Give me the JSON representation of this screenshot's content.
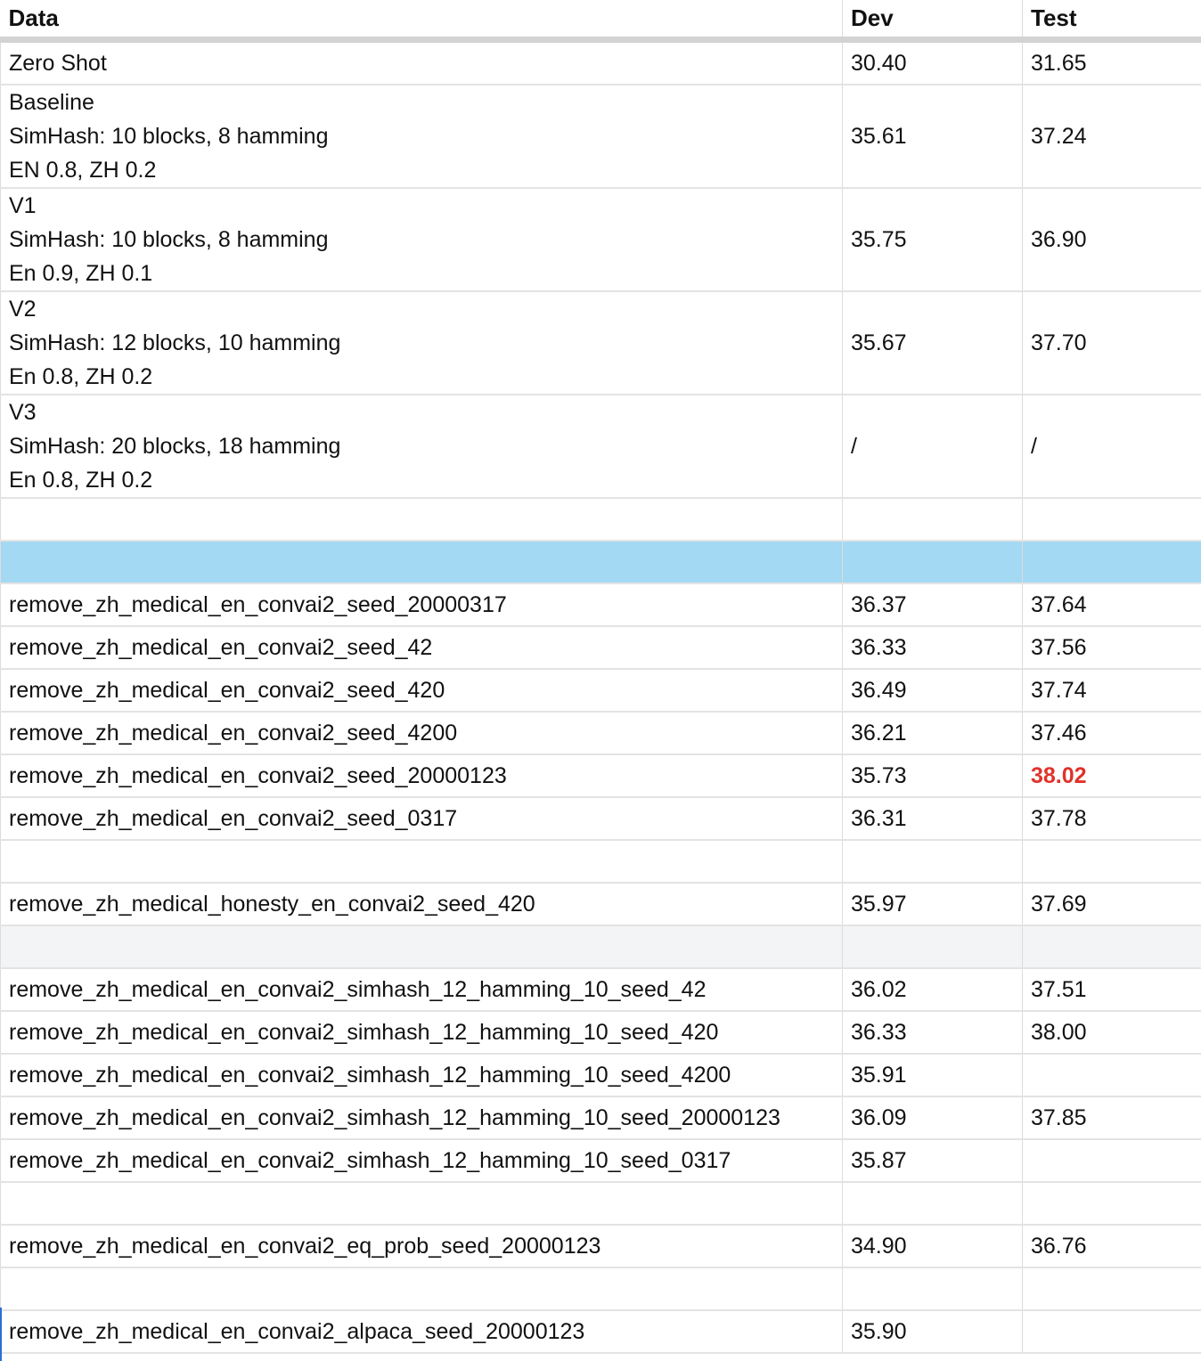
{
  "columns": {
    "data": "Data",
    "dev": "Dev",
    "test": "Test"
  },
  "multi_rows": [
    {
      "lines": [
        "Zero Shot"
      ],
      "dev": "30.40",
      "test": "31.65"
    },
    {
      "lines": [
        "Baseline",
        "SimHash: 10 blocks, 8 hamming",
        "EN 0.8, ZH 0.2"
      ],
      "dev": "35.61",
      "test": "37.24"
    },
    {
      "lines": [
        "V1",
        "SimHash: 10 blocks, 8 hamming",
        "En 0.9, ZH 0.1"
      ],
      "dev": "35.75",
      "test": "36.90"
    },
    {
      "lines": [
        "V2",
        "SimHash: 12 blocks, 10 hamming",
        "En 0.8, ZH 0.2"
      ],
      "dev": "35.67",
      "test": "37.70"
    },
    {
      "lines": [
        "V3",
        "SimHash: 20 blocks, 18 hamming",
        "En 0.8, ZH 0.2"
      ],
      "dev": "/",
      "test": "/"
    }
  ],
  "seed_rows": [
    {
      "data": "remove_zh_medical_en_convai2_seed_20000317",
      "dev": "36.37",
      "test": "37.64"
    },
    {
      "data": "remove_zh_medical_en_convai2_seed_42",
      "dev": "36.33",
      "test": "37.56"
    },
    {
      "data": "remove_zh_medical_en_convai2_seed_420",
      "dev": "36.49",
      "test": "37.74"
    },
    {
      "data": "remove_zh_medical_en_convai2_seed_4200",
      "dev": "36.21",
      "test": "37.46"
    },
    {
      "data": "remove_zh_medical_en_convai2_seed_20000123",
      "dev": "35.73",
      "test": "38.02",
      "highlight_color": "#e0322a"
    },
    {
      "data": "remove_zh_medical_en_convai2_seed_0317",
      "dev": "36.31",
      "test": "37.78"
    }
  ],
  "honesty_row": {
    "data": "remove_zh_medical_honesty_en_convai2_seed_420",
    "dev": "35.97",
    "test": "37.69"
  },
  "simhash_rows": [
    {
      "data": "remove_zh_medical_en_convai2_simhash_12_hamming_10_seed_42",
      "dev": "36.02",
      "test": "37.51"
    },
    {
      "data": "remove_zh_medical_en_convai2_simhash_12_hamming_10_seed_420",
      "dev": "36.33",
      "test": "38.00"
    },
    {
      "data": "remove_zh_medical_en_convai2_simhash_12_hamming_10_seed_4200",
      "dev": "35.91",
      "test": ""
    },
    {
      "data": "remove_zh_medical_en_convai2_simhash_12_hamming_10_seed_20000123",
      "dev": "36.09",
      "test": "37.85"
    },
    {
      "data": "remove_zh_medical_en_convai2_simhash_12_hamming_10_seed_0317",
      "dev": "35.87",
      "test": ""
    }
  ],
  "eq_prob_row": {
    "data": "remove_zh_medical_en_convai2_eq_prob_seed_20000123",
    "dev": "34.90",
    "test": "36.76"
  },
  "alpaca_row": {
    "data": "remove_zh_medical_en_convai2_alpaca_seed_20000123",
    "dev": "35.90",
    "test": ""
  },
  "colors": {
    "section_band": "#a4d9f4",
    "grey_band": "#f3f4f6",
    "highlight": "#e0322a",
    "selection": "#2a6fd6"
  }
}
